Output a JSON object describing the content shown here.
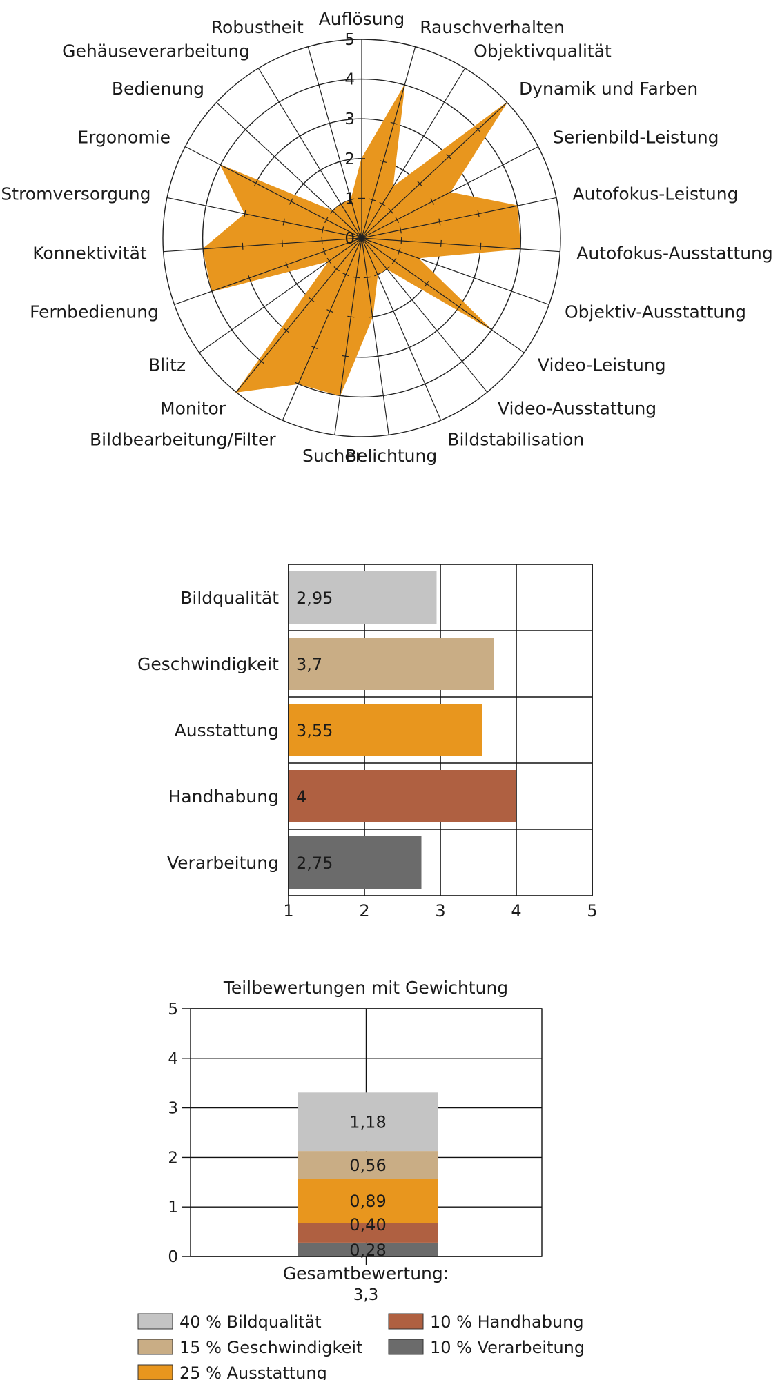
{
  "colors": {
    "radar_fill": "#E8961E",
    "bildqualitaet": "#C4C4C4",
    "geschwindigkeit": "#C9AD85",
    "ausstattung": "#E8961E",
    "handhabung": "#AF6041",
    "verarbeitung": "#6B6B6B"
  },
  "chart_data": [
    {
      "type": "radar",
      "axes": [
        "Auflösung",
        "Rauschverhalten",
        "Objektivqualität",
        "Dynamik und Farben",
        "Serienbild-Leistung",
        "Autofokus-Leistung",
        "Autofokus-Ausstattung",
        "Objektiv-Ausstattung",
        "Video-Leistung",
        "Video-Ausstattung",
        "Bildstabilisation",
        "Belichtung",
        "Sucher",
        "Bildbearbeitung/Filter",
        "Monitor",
        "Blitz",
        "Fernbedienung",
        "Konnektivität",
        "Stromversorgung",
        "Ergonomie",
        "Bedienung",
        "Gehäuseverarbeitung",
        "Robustheit"
      ],
      "values": [
        2,
        4,
        1.5,
        5,
        2.5,
        4,
        4,
        1.5,
        4,
        1,
        1,
        2,
        4,
        4,
        5,
        1,
        4,
        4,
        3,
        4,
        1,
        1,
        1
      ],
      "rlim": [
        0,
        5
      ],
      "ticks": [
        "0",
        "1",
        "2",
        "3",
        "4",
        "5"
      ]
    },
    {
      "type": "bar",
      "orientation": "horizontal",
      "categories": [
        "Bildqualität",
        "Geschwindigkeit",
        "Ausstattung",
        "Handhabung",
        "Verarbeitung"
      ],
      "values": [
        2.95,
        3.7,
        3.55,
        4,
        2.75
      ],
      "labels": [
        "2,95",
        "3,7",
        "3,55",
        "4",
        "2,75"
      ],
      "xlim": [
        1,
        5
      ],
      "xticks": [
        "1",
        "2",
        "3",
        "4",
        "5"
      ]
    },
    {
      "type": "bar",
      "stacked": true,
      "title": "Teilbewertungen mit Gewichtung",
      "category": "Gesamtbewertung:",
      "total_label": "3,3",
      "ylim": [
        0,
        5
      ],
      "yticks": [
        "0",
        "1",
        "2",
        "3",
        "4",
        "5"
      ],
      "series": [
        {
          "name": "10 % Verarbeitung",
          "value": 0.28,
          "label": "0,28"
        },
        {
          "name": "10 % Handhabung",
          "value": 0.4,
          "label": "0,40"
        },
        {
          "name": "25 % Ausstattung",
          "value": 0.89,
          "label": "0,89"
        },
        {
          "name": "15 % Geschwindigkeit",
          "value": 0.56,
          "label": "0,56"
        },
        {
          "name": "40 % Bildqualität",
          "value": 1.18,
          "label": "1,18"
        }
      ],
      "legend": [
        "40 % Bildqualität",
        "15 % Geschwindigkeit",
        "25 % Ausstattung",
        "10 % Handhabung",
        "10 % Verarbeitung"
      ]
    }
  ]
}
